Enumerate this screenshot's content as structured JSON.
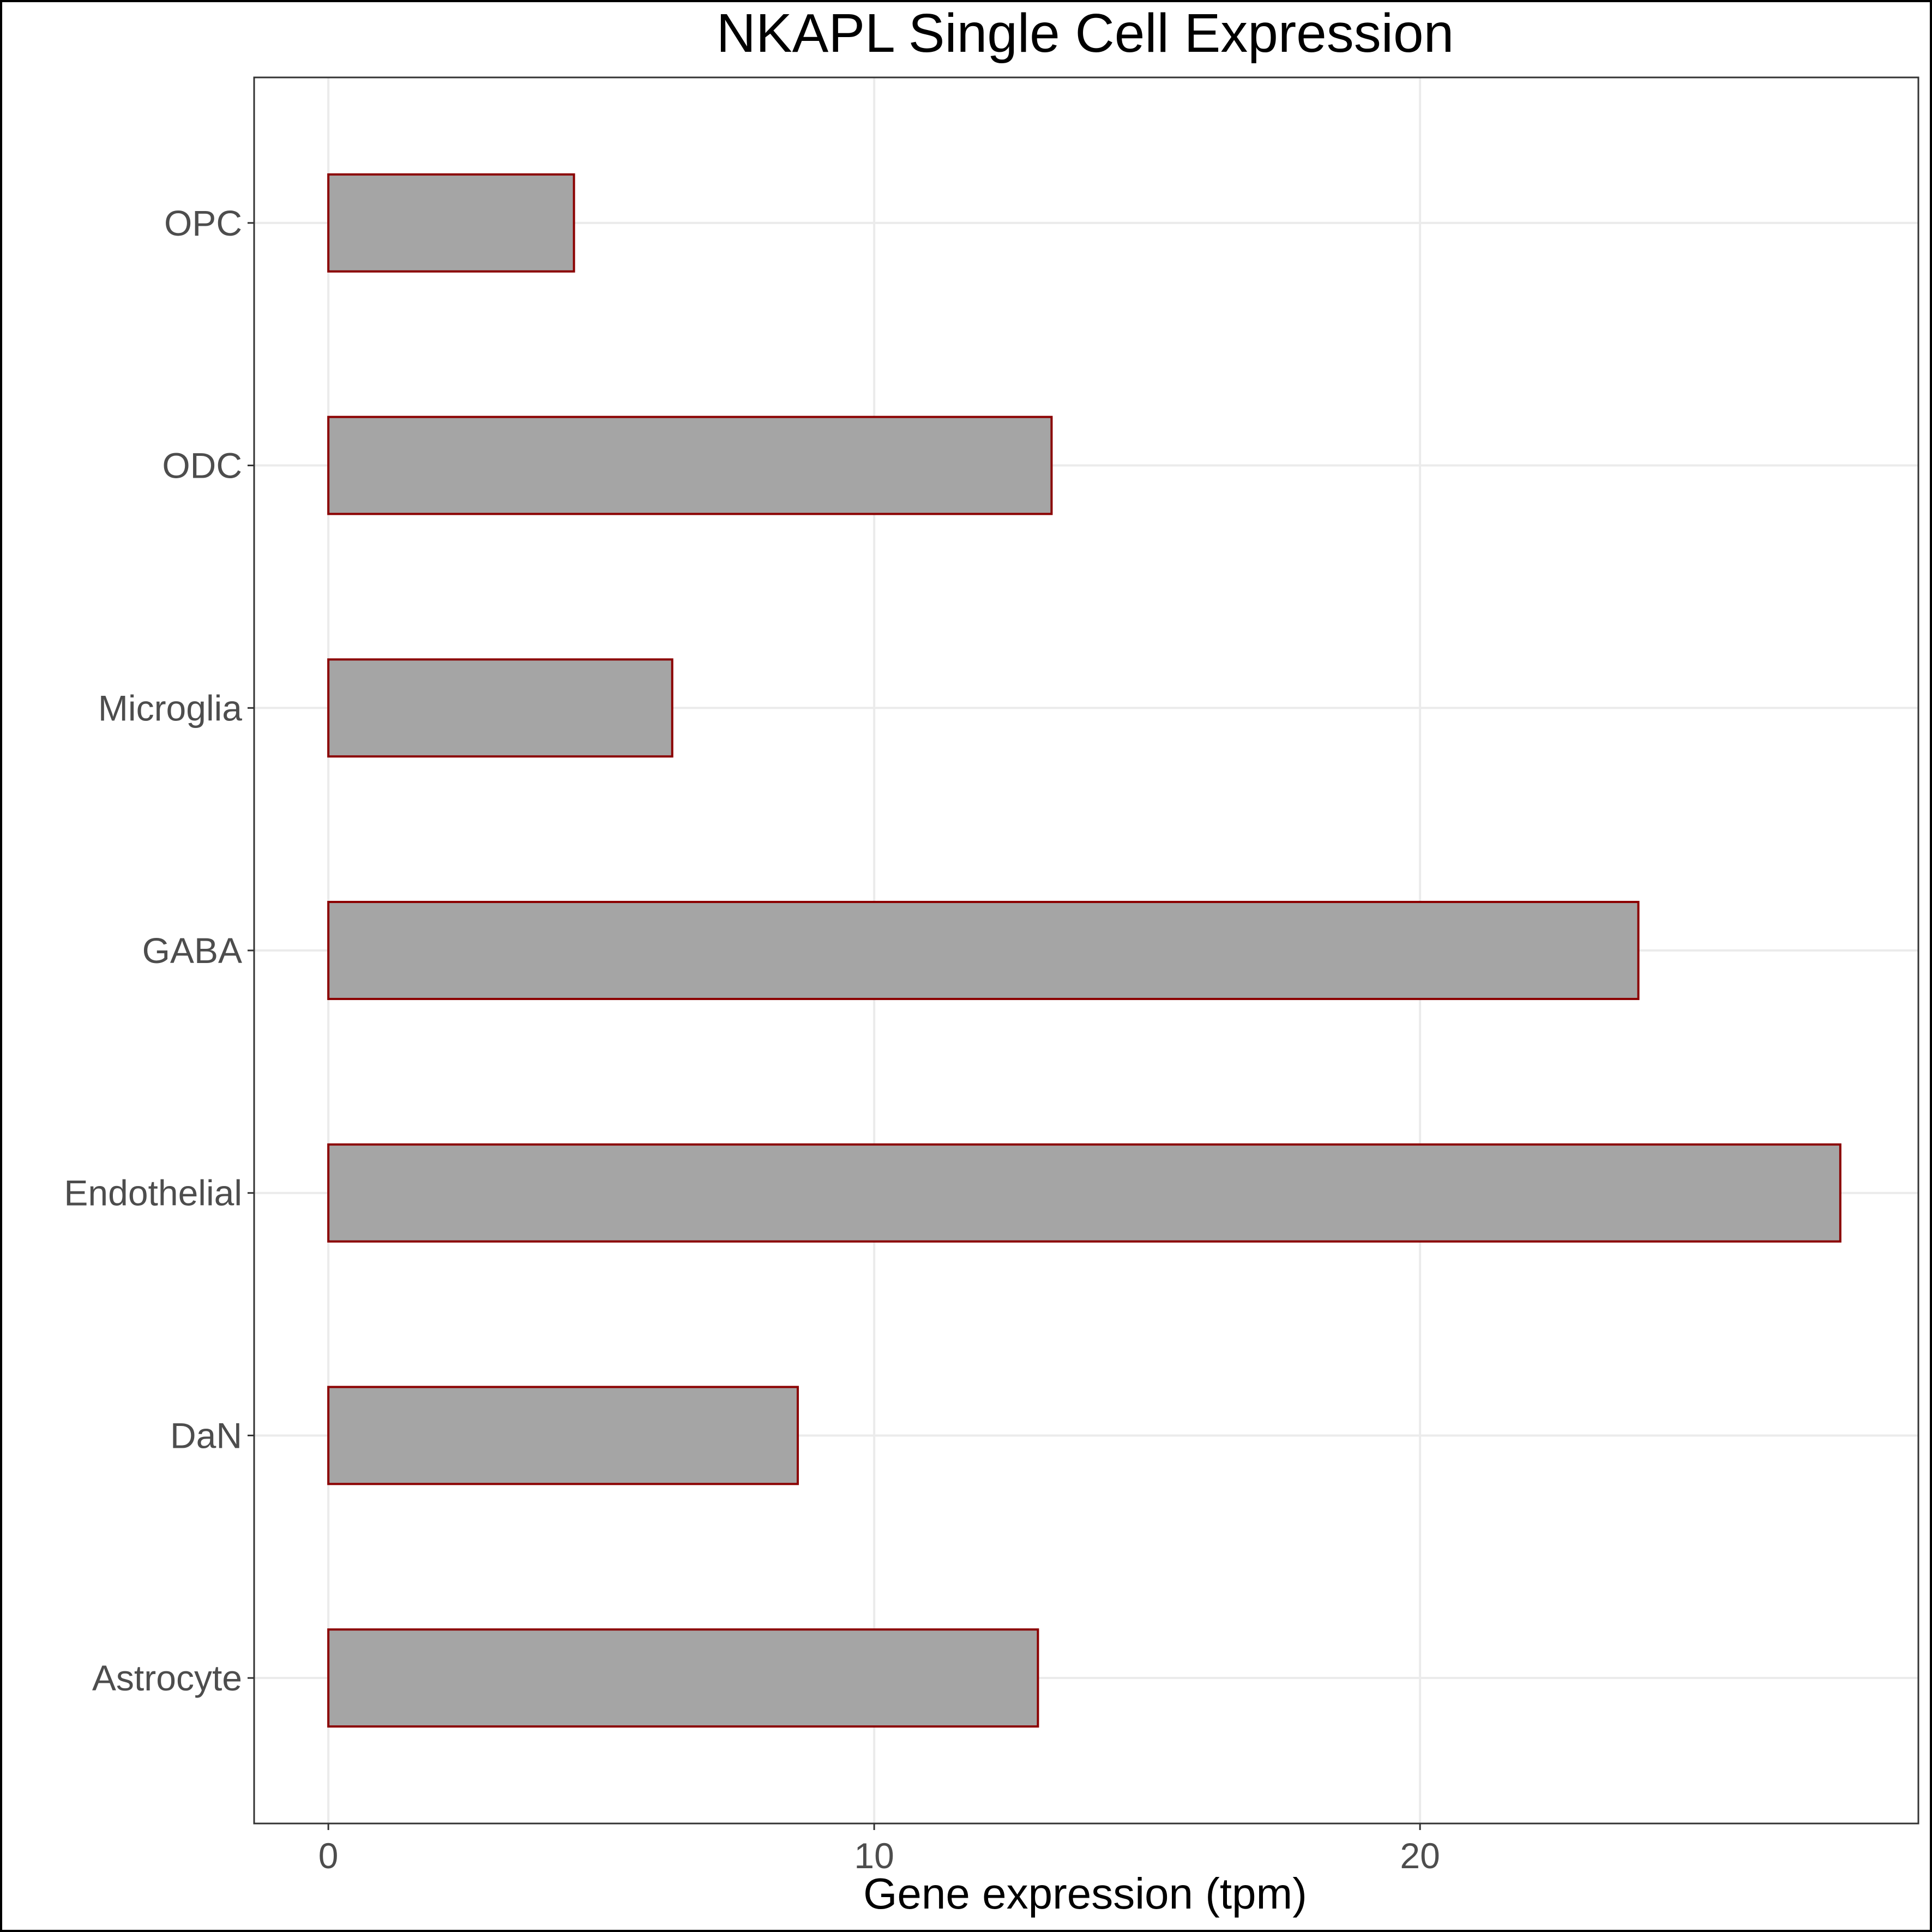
{
  "chart_data": {
    "type": "bar",
    "orientation": "horizontal",
    "title": "NKAPL Single Cell Expression",
    "xlabel": "Gene expression (tpm)",
    "ylabel": "",
    "categories": [
      "Astrocyte",
      "DaN",
      "Endothelial",
      "GABA",
      "Microglia",
      "ODC",
      "OPC"
    ],
    "values": [
      13.0,
      8.6,
      27.7,
      24.0,
      6.3,
      13.25,
      4.5
    ],
    "xlim": [
      -1.36,
      29.13
    ],
    "xticks": [
      0,
      10,
      20
    ],
    "grid": true,
    "legend": "none",
    "bar_fill": "#a5a5a5",
    "bar_outline": "#8b0000"
  }
}
